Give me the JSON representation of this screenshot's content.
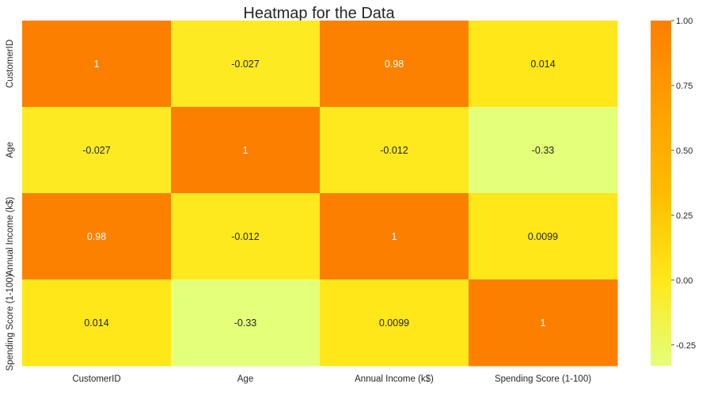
{
  "chart_data": {
    "type": "heatmap",
    "title": "Heatmap for the Data",
    "x_labels": [
      "CustomerID",
      "Age",
      "Annual Income (k$)",
      "Spending Score (1-100)"
    ],
    "y_labels": [
      "CustomerID",
      "Age",
      "Annual Income (k$)",
      "Spending Score (1-100)"
    ],
    "values": [
      [
        1,
        -0.027,
        0.98,
        0.014
      ],
      [
        -0.027,
        1,
        -0.012,
        -0.33
      ],
      [
        0.98,
        -0.012,
        1,
        0.0099
      ],
      [
        0.014,
        -0.33,
        0.0099,
        1
      ]
    ],
    "annotations": [
      [
        "1",
        "-0.027",
        "0.98",
        "0.014"
      ],
      [
        "-0.027",
        "1",
        "-0.012",
        "-0.33"
      ],
      [
        "0.98",
        "-0.012",
        "1",
        "0.0099"
      ],
      [
        "0.014",
        "-0.33",
        "0.0099",
        "1"
      ]
    ],
    "colormap": "Wistia",
    "color_range": [
      -0.33,
      1
    ],
    "colorbar_ticks": [
      "-0.25",
      "0.00",
      "0.25",
      "0.50",
      "0.75",
      "1.00"
    ],
    "colorbar_tick_values": [
      -0.25,
      0,
      0.25,
      0.5,
      0.75,
      1
    ],
    "colorbar_placement": "right"
  }
}
